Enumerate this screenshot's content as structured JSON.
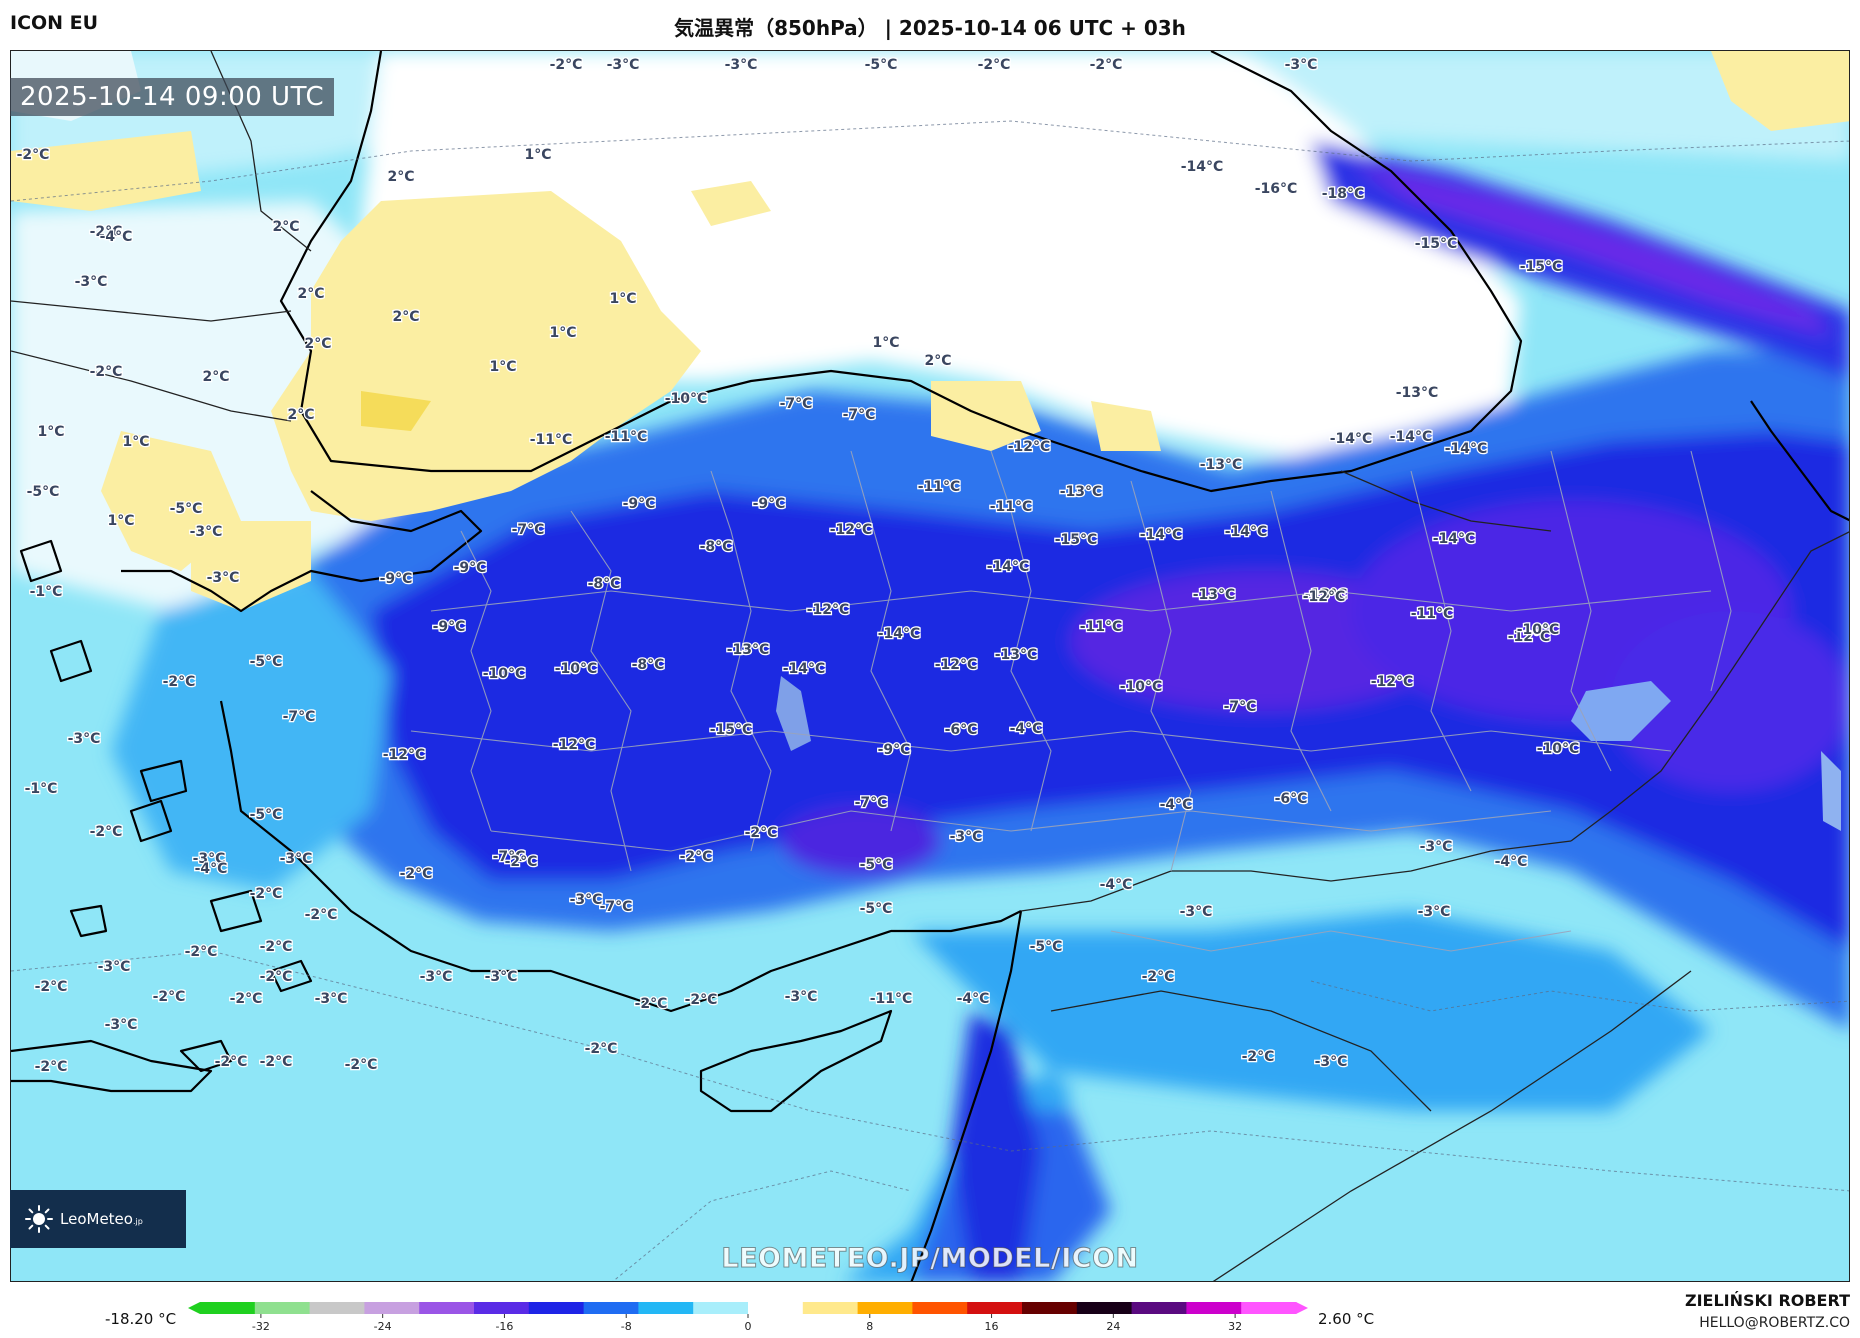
{
  "header": {
    "model": "ICON EU",
    "title": "気温異常（850hPa） | 2025-10-14 06 UTC + 03h"
  },
  "map": {
    "timestamp": "2025-10-14 09:00 UTC",
    "watermark": "LEOMETEO.JP/MODEL/ICON",
    "labels": [
      {
        "t": "-2°C"
      },
      {
        "t": "-3°C"
      },
      {
        "t": "-3°C"
      },
      {
        "t": "-5°C"
      },
      {
        "t": "-2°C"
      },
      {
        "t": "-2°C"
      },
      {
        "t": "-3°C"
      },
      {
        "t": "-2°C"
      },
      {
        "t": "-2°C"
      },
      {
        "t": "-3°C"
      },
      {
        "t": "1°C"
      },
      {
        "t": "2°C"
      },
      {
        "t": "2°C"
      },
      {
        "t": "2°C"
      },
      {
        "t": "2°C"
      },
      {
        "t": "2°C"
      },
      {
        "t": "1°C"
      },
      {
        "t": "1°C"
      },
      {
        "t": "1°C"
      },
      {
        "t": "2°C"
      },
      {
        "t": "2°C"
      },
      {
        "t": "1°C"
      },
      {
        "t": "1°C"
      },
      {
        "t": "1°C"
      },
      {
        "t": "1°C"
      },
      {
        "t": "2°C"
      },
      {
        "t": "-5°C"
      },
      {
        "t": "-4°C"
      },
      {
        "t": "-2°C"
      },
      {
        "t": "-3°C"
      },
      {
        "t": "-5°C"
      },
      {
        "t": "-3°C"
      },
      {
        "t": "-1°C"
      },
      {
        "t": "-5°C"
      },
      {
        "t": "-2°C"
      },
      {
        "t": "-7°C"
      },
      {
        "t": "-3°C"
      },
      {
        "t": "-1°C"
      },
      {
        "t": "-5°C"
      },
      {
        "t": "-10°C"
      },
      {
        "t": "-11°C"
      },
      {
        "t": "-11°C"
      },
      {
        "t": "-7°C"
      },
      {
        "t": "-7°C"
      },
      {
        "t": "-9°C"
      },
      {
        "t": "-9°C"
      },
      {
        "t": "-7°C"
      },
      {
        "t": "-8°C"
      },
      {
        "t": "-8°C"
      },
      {
        "t": "-9°C"
      },
      {
        "t": "-9°C"
      },
      {
        "t": "-9°C"
      },
      {
        "t": "-10°C"
      },
      {
        "t": "-10°C"
      },
      {
        "t": "-8°C"
      },
      {
        "t": "-13°C"
      },
      {
        "t": "-14°C"
      },
      {
        "t": "-12°C"
      },
      {
        "t": "-15°C"
      },
      {
        "t": "-12°C"
      },
      {
        "t": "-12°C"
      },
      {
        "t": "-12°C"
      },
      {
        "t": "-14°C"
      },
      {
        "t": "-12°C"
      },
      {
        "t": "-13°C"
      },
      {
        "t": "-11°C"
      },
      {
        "t": "-11°C"
      },
      {
        "t": "-12°C"
      },
      {
        "t": "-13°C"
      },
      {
        "t": "-14°C"
      },
      {
        "t": "-15°C"
      },
      {
        "t": "-14°C"
      },
      {
        "t": "-13°C"
      },
      {
        "t": "-11°C"
      },
      {
        "t": "-13°C"
      },
      {
        "t": "-14°C"
      },
      {
        "t": "-13°C"
      },
      {
        "t": "-12°C"
      },
      {
        "t": "-14°C"
      },
      {
        "t": "-14°C"
      },
      {
        "t": "-14°C"
      },
      {
        "t": "-13°C"
      },
      {
        "t": "-14°C"
      },
      {
        "t": "-11°C"
      },
      {
        "t": "-12°C"
      },
      {
        "t": "-10°C"
      },
      {
        "t": "-12°C"
      },
      {
        "t": "-10°C"
      },
      {
        "t": "-14°C"
      },
      {
        "t": "-16°C"
      },
      {
        "t": "-18°C"
      },
      {
        "t": "-15°C"
      },
      {
        "t": "-15°C"
      },
      {
        "t": "-10°C"
      },
      {
        "t": "-7°C"
      },
      {
        "t": "-6°C"
      },
      {
        "t": "-4°C"
      },
      {
        "t": "-9°C"
      },
      {
        "t": "-7°C"
      },
      {
        "t": "-3°C"
      },
      {
        "t": "-4°C"
      },
      {
        "t": "-6°C"
      },
      {
        "t": "-3°C"
      },
      {
        "t": "-4°C"
      },
      {
        "t": "-5°C"
      },
      {
        "t": "-4°C"
      },
      {
        "t": "-5°C"
      },
      {
        "t": "-5°C"
      },
      {
        "t": "-3°C"
      },
      {
        "t": "-3°C"
      },
      {
        "t": "-11°C"
      },
      {
        "t": "-4°C"
      },
      {
        "t": "-2°C"
      },
      {
        "t": "-3°C"
      },
      {
        "t": "-2°C"
      },
      {
        "t": "-2°C"
      },
      {
        "t": "-2°C"
      },
      {
        "t": "-2°C"
      },
      {
        "t": "-7°C"
      },
      {
        "t": "-3°C"
      },
      {
        "t": "-2°C"
      },
      {
        "t": "-2°C"
      },
      {
        "t": "-2°C"
      },
      {
        "t": "-2°C"
      },
      {
        "t": "-2°C"
      },
      {
        "t": "-2°C"
      },
      {
        "t": "-2°C"
      },
      {
        "t": "-3°C"
      },
      {
        "t": "-3°C"
      },
      {
        "t": "-2°C"
      },
      {
        "t": "-3°C"
      },
      {
        "t": "-2°C"
      },
      {
        "t": "-4°C"
      },
      {
        "t": "-3°C"
      },
      {
        "t": "-3°C"
      },
      {
        "t": "-2°C"
      },
      {
        "t": "-2°C"
      },
      {
        "t": "-3°C"
      },
      {
        "t": "-2°C"
      },
      {
        "t": "-2°C"
      },
      {
        "t": "-2°C"
      },
      {
        "t": "-7°C"
      },
      {
        "t": "-2°C"
      },
      {
        "t": "-3°C"
      },
      {
        "t": "-2°C"
      },
      {
        "t": "-2°C"
      },
      {
        "t": "-3°C"
      }
    ]
  },
  "logo": {
    "text": "LeoMeteo",
    "suffix": ".jp"
  },
  "colorbar": {
    "min_label": "-18.20 °C",
    "max_label": "2.60 °C",
    "ticks": [
      "-32",
      "-24",
      "-16",
      "-8",
      "0",
      "8",
      "16",
      "24",
      "32"
    ],
    "stops": [
      "#1fd01f",
      "#8fe08f",
      "#c8c8c8",
      "#c7a0e0",
      "#9a55e6",
      "#5a2be6",
      "#1e24e6",
      "#1f6cf2",
      "#23b7f5",
      "#a8eefb",
      "#ffffff",
      "#ffe98c",
      "#ffae00",
      "#ff5400",
      "#d41010",
      "#660000",
      "#180018",
      "#5a0a80",
      "#cc00cc",
      "#ff55ff"
    ]
  },
  "credit": {
    "author": "ZIELIŃSKI ROBERT",
    "email": "HELLO@ROBERTZ.CO"
  }
}
